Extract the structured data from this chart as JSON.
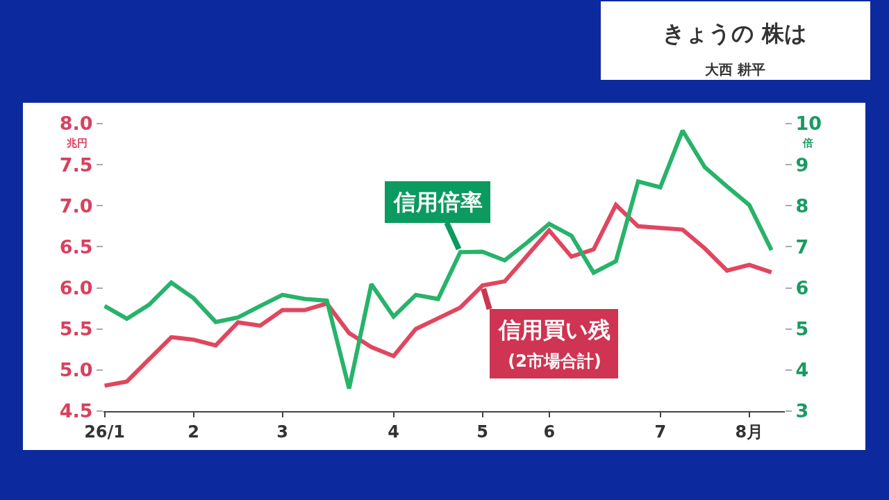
{
  "chart_data": {
    "type": "line",
    "title": "きょうの 株は",
    "subtitle": "大西 耕平",
    "ylabel": "兆円",
    "y2label": "倍",
    "categories": [
      "26/1",
      null,
      null,
      null,
      "2",
      null,
      null,
      null,
      "3",
      null,
      null,
      null,
      null,
      "4",
      null,
      null,
      null,
      "5",
      null,
      null,
      "6",
      null,
      null,
      null,
      null,
      "7",
      null,
      null,
      null,
      "8月",
      null
    ],
    "series": [
      {
        "name": "信用買い残\n(2市場合計)",
        "color": "#e0465f",
        "values": [
          4.81,
          4.86,
          5.13,
          5.4,
          5.37,
          5.3,
          5.58,
          5.54,
          5.73,
          5.73,
          5.81,
          5.45,
          5.28,
          5.17,
          5.5,
          5.63,
          5.76,
          6.03,
          6.08,
          6.39,
          6.7,
          6.38,
          6.47,
          7.01,
          6.75,
          6.73,
          6.71,
          6.48,
          6.21,
          6.28,
          6.19
        ]
      },
      {
        "name": "信用倍率",
        "color": "#27b36a",
        "axis": "y2",
        "values": [
          5.56,
          5.25,
          5.59,
          6.13,
          5.75,
          5.17,
          5.28,
          5.56,
          5.83,
          5.73,
          5.69,
          3.55,
          6.09,
          5.3,
          5.83,
          5.73,
          6.87,
          6.88,
          6.67,
          7.1,
          7.56,
          7.27,
          6.37,
          6.65,
          8.59,
          8.45,
          9.83,
          8.94,
          8.47,
          8.02,
          6.92
        ]
      }
    ],
    "ylim": [
      4.5,
      8.0
    ],
    "yticks": [
      4.5,
      {
        "value": 5,
        "label": "5.0"
      },
      5.5,
      {
        "value": 6,
        "label": "6.0"
      },
      6.5,
      {
        "value": 7,
        "label": "7.0"
      },
      7.5,
      {
        "value": 8,
        "label": "8.0"
      }
    ],
    "y2lim": [
      3,
      10
    ],
    "y2ticks": [
      3,
      4,
      5,
      6,
      7,
      8,
      9,
      10
    ],
    "legend": false,
    "grid": false,
    "marker": "none",
    "line_style": "solid"
  }
}
